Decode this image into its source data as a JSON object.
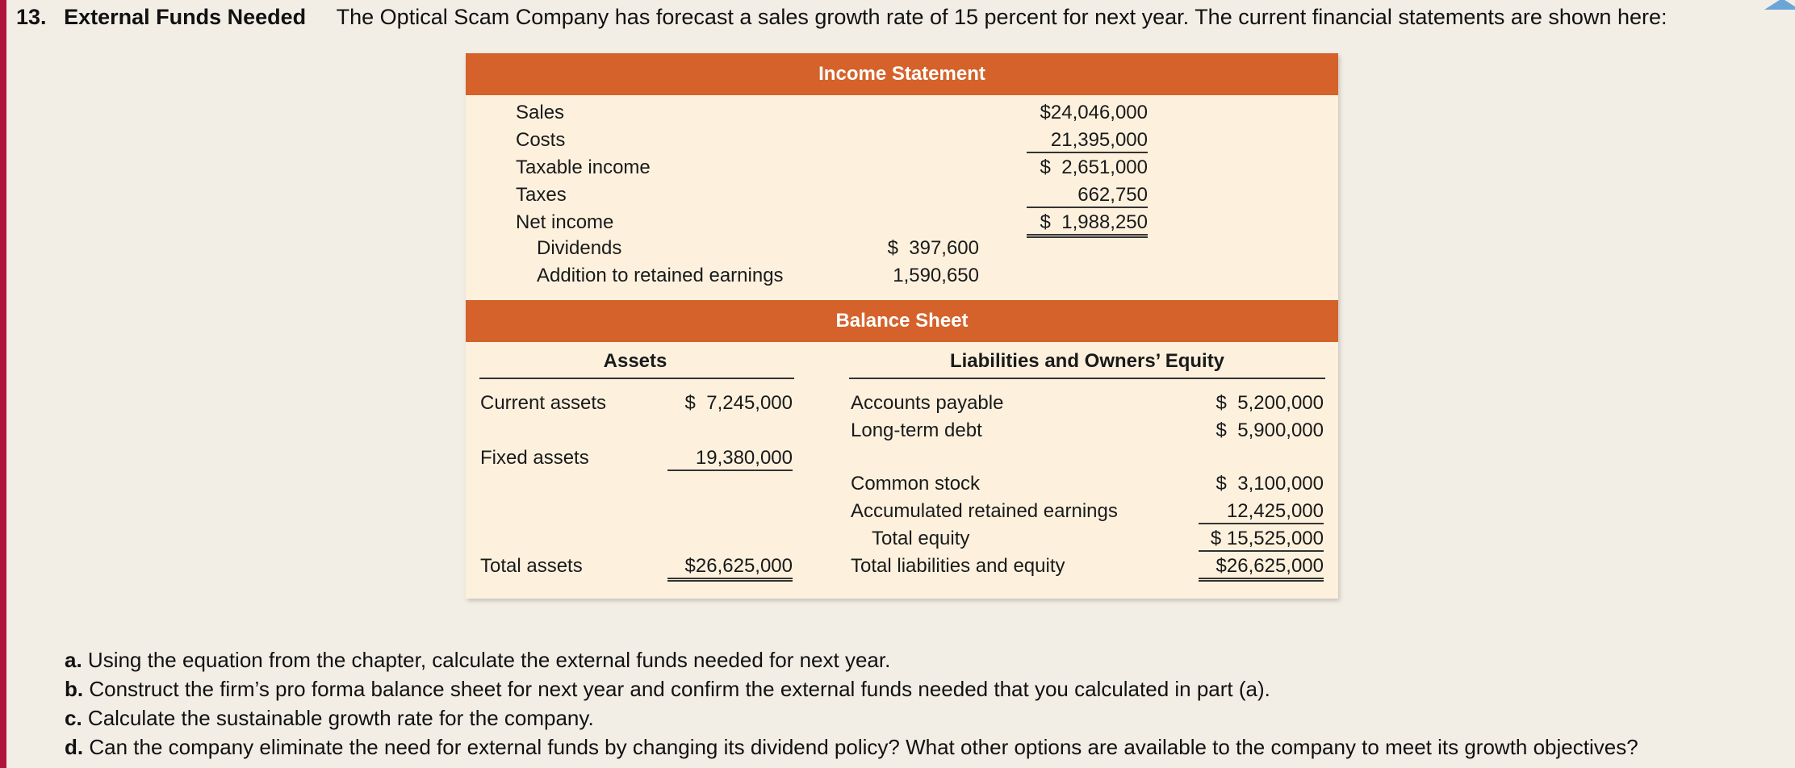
{
  "problem": {
    "number": "13.",
    "title": "External Funds Needed",
    "intro": "The Optical Scam Company has forecast a sales growth rate of 15 percent for next year. The current financial statements are shown here:"
  },
  "income_statement": {
    "title": "Income Statement",
    "sales_label": "Sales",
    "sales_value": "$24,046,000",
    "costs_label": "Costs",
    "costs_value": "21,395,000",
    "taxable_label": "Taxable income",
    "taxable_value": "$  2,651,000",
    "taxes_label": "Taxes",
    "taxes_value": "662,750",
    "net_label": "Net income",
    "net_value": "$  1,988,250",
    "dividends_label": "Dividends",
    "dividends_value": "$  397,600",
    "addition_label": "Addition to retained earnings",
    "addition_value": "1,590,650"
  },
  "balance_sheet": {
    "title": "Balance Sheet",
    "assets_header": "Assets",
    "liabilities_header": "Liabilities and Owners’ Equity",
    "current_assets_label": "Current assets",
    "current_assets_value": "$  7,245,000",
    "fixed_assets_label": "Fixed assets",
    "fixed_assets_value": "19,380,000",
    "total_assets_label": "Total assets",
    "total_assets_value": "$26,625,000",
    "ap_label": "Accounts payable",
    "ap_value": "$  5,200,000",
    "ltd_label": "Long-term debt",
    "ltd_value": "$  5,900,000",
    "cs_label": "Common stock",
    "cs_value": "$  3,100,000",
    "are_label": "Accumulated retained earnings",
    "are_value": "12,425,000",
    "te_label": "Total equity",
    "te_value": "$ 15,525,000",
    "tle_label": "Total liabilities and equity",
    "tle_value": "$26,625,000"
  },
  "questions": [
    {
      "letter": "a.",
      "text": "Using the equation from the chapter, calculate the external funds needed for next year."
    },
    {
      "letter": "b.",
      "text": "Construct the firm’s pro forma balance sheet for next year and confirm the external funds needed that you calculated in part (a)."
    },
    {
      "letter": "c.",
      "text": "Calculate the sustainable growth rate for the company."
    },
    {
      "letter": "d.",
      "text": "Can the company eliminate the need for external funds by changing its dividend policy? What other options are available to the company to meet its growth objectives?"
    }
  ],
  "colors": {
    "band": "#d5622a",
    "panel": "#fdf1de",
    "left_bar": "#b0143c"
  }
}
